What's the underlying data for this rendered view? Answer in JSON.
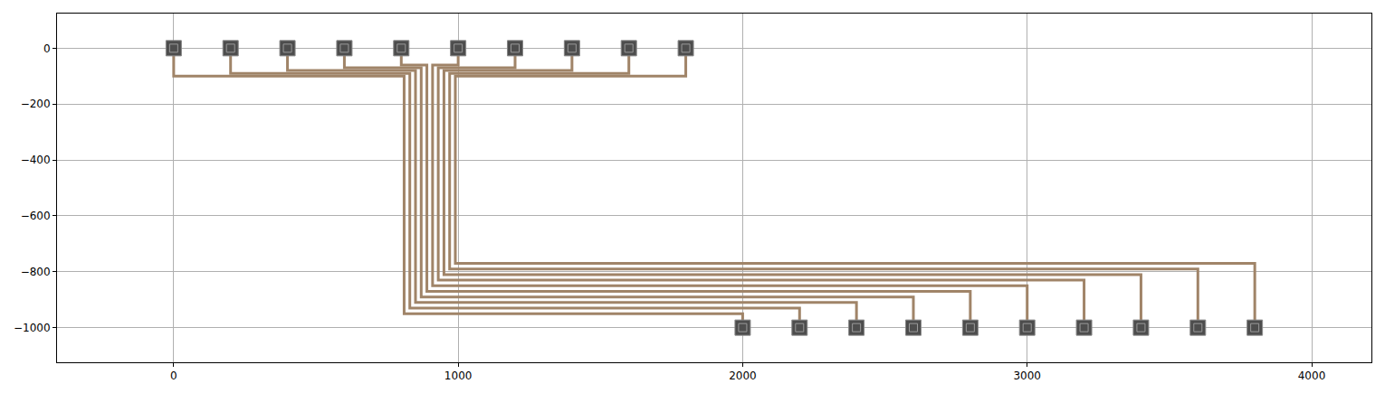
{
  "chart_data": {
    "type": "line",
    "color": "#a08468",
    "grid": true,
    "xlim": [
      -410,
      4210
    ],
    "ylim": [
      -1124,
      124
    ],
    "xticks": [
      0,
      1000,
      2000,
      3000,
      4000
    ],
    "yticks": [
      0,
      {
        "value": -200,
        "label": "−200"
      },
      {
        "value": -400,
        "label": "−400"
      },
      {
        "value": -600,
        "label": "−600"
      },
      {
        "value": -800,
        "label": "−800"
      },
      {
        "value": -1000,
        "label": "−1000"
      }
    ],
    "pads": {
      "color": "#4d4d4d",
      "x": [
        0,
        200,
        400,
        600,
        800,
        1000,
        1200,
        1400,
        1600,
        1800,
        2000,
        2200,
        2400,
        2600,
        2800,
        3000,
        3200,
        3400,
        3600,
        3800
      ],
      "y": [
        0,
        0,
        0,
        0,
        0,
        0,
        0,
        0,
        0,
        0,
        -1000,
        -1000,
        -1000,
        -1000,
        -1000,
        -1000,
        -1000,
        -1000,
        -1000,
        -1000
      ]
    },
    "series": [
      {
        "x": [
          0,
          0,
          810,
          810,
          2000,
          2000
        ],
        "y": [
          0,
          -100,
          -100,
          -950,
          -950,
          -1000
        ]
      },
      {
        "x": [
          200,
          200,
          830,
          830,
          2200,
          2200
        ],
        "y": [
          0,
          -90,
          -90,
          -930,
          -930,
          -1000
        ]
      },
      {
        "x": [
          400,
          400,
          850,
          850,
          2400,
          2400
        ],
        "y": [
          0,
          -80,
          -80,
          -910,
          -910,
          -1000
        ]
      },
      {
        "x": [
          600,
          600,
          870,
          870,
          2600,
          2600
        ],
        "y": [
          0,
          -70,
          -70,
          -890,
          -890,
          -1000
        ]
      },
      {
        "x": [
          800,
          800,
          890,
          890,
          2800,
          2800
        ],
        "y": [
          0,
          -60,
          -60,
          -870,
          -870,
          -1000
        ]
      },
      {
        "x": [
          1000,
          1000,
          910,
          910,
          3000,
          3000
        ],
        "y": [
          0,
          -60,
          -60,
          -850,
          -850,
          -1000
        ]
      },
      {
        "x": [
          1200,
          1200,
          930,
          930,
          3200,
          3200
        ],
        "y": [
          0,
          -70,
          -70,
          -830,
          -830,
          -1000
        ]
      },
      {
        "x": [
          1400,
          1400,
          950,
          950,
          3400,
          3400
        ],
        "y": [
          0,
          -80,
          -80,
          -810,
          -810,
          -1000
        ]
      },
      {
        "x": [
          1600,
          1600,
          970,
          970,
          3600,
          3600
        ],
        "y": [
          0,
          -90,
          -90,
          -790,
          -790,
          -1000
        ]
      },
      {
        "x": [
          1800,
          1800,
          990,
          990,
          3800,
          3800
        ],
        "y": [
          0,
          -100,
          -100,
          -770,
          -770,
          -1000
        ]
      }
    ]
  }
}
